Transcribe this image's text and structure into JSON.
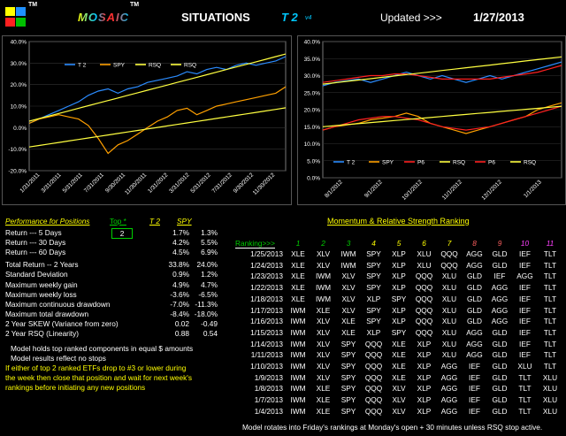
{
  "header": {
    "mosaic": "MOSAIC",
    "tm": "TM",
    "situations": "SITUATIONS",
    "t2": "T 2",
    "version": "v4",
    "updated_label": "Updated >>>",
    "updated_date": "1/27/2013",
    "letter_colors": [
      "#ffff00",
      "#00c8ff",
      "#ff3030",
      "#ff3030",
      "#ffff00",
      "#00c8ff"
    ]
  },
  "chart_data": [
    {
      "type": "line",
      "ylim": [
        -20,
        40
      ],
      "yticks": [
        "40.0%",
        "30.0%",
        "20.0%",
        "10.0%",
        "0.0%",
        "-10.0%",
        "-20.0%"
      ],
      "xticks": [
        "1/31/2011",
        "3/31/2011",
        "5/31/2011",
        "7/31/2011",
        "9/30/2011",
        "11/30/2011",
        "1/31/2012",
        "3/31/2012",
        "5/31/2012",
        "7/31/2012",
        "9/30/2012",
        "11/30/2012"
      ],
      "legend": [
        "T 2",
        "SPY",
        "RSQ",
        "RSQ"
      ],
      "series": [
        {
          "name": "T 2",
          "color": "#2b8cff",
          "values": [
            2,
            4,
            6,
            8,
            10,
            12,
            15,
            17,
            18,
            16,
            18,
            19,
            21,
            22,
            23,
            24,
            26,
            25,
            27,
            28,
            27,
            29,
            30,
            29,
            30,
            31,
            33
          ]
        },
        {
          "name": "SPY",
          "color": "#ffa000",
          "values": [
            2,
            4,
            5,
            6,
            5,
            4,
            1,
            -5,
            -12,
            -8,
            -6,
            -3,
            0,
            3,
            5,
            8,
            9,
            6,
            8,
            10,
            11,
            12,
            13,
            14,
            15,
            16,
            19
          ]
        },
        {
          "name": "RSQ",
          "color": "#ffff40",
          "values": [
            3,
            4.2,
            5.4,
            6.6,
            7.8,
            9,
            10.2,
            11.4,
            12.6,
            13.8,
            15,
            16.2,
            17.4,
            18.6,
            19.8,
            21,
            22.2,
            23.4,
            24.6,
            25.8,
            27,
            28.2,
            29.4,
            30.6,
            31.8,
            33,
            34.2
          ]
        },
        {
          "name": "RSQ",
          "color": "#ffff40",
          "values": [
            -9,
            -8.3,
            -7.6,
            -6.9,
            -6.2,
            -5.5,
            -4.8,
            -4.1,
            -3.4,
            -2.7,
            -2,
            -1.3,
            -0.6,
            0.1,
            0.8,
            1.5,
            2.2,
            2.9,
            3.6,
            4.3,
            5,
            5.7,
            6.4,
            7.1,
            7.8,
            8.5,
            9.2
          ]
        }
      ]
    },
    {
      "type": "line",
      "ylim": [
        0,
        40
      ],
      "yticks": [
        "40.0%",
        "35.0%",
        "30.0%",
        "25.0%",
        "20.0%",
        "15.0%",
        "10.0%",
        "5.0%",
        "0.0%"
      ],
      "xticks": [
        "8/1/2012",
        "9/1/2012",
        "10/1/2012",
        "11/1/2012",
        "12/1/2012",
        "1/1/2013"
      ],
      "legend": [
        "T 2",
        "SPY",
        "P6",
        "RSQ",
        "P6",
        "RSQ"
      ],
      "series": [
        {
          "name": "T 2",
          "color": "#2b8cff",
          "values": [
            27,
            28,
            28.5,
            29,
            28,
            29,
            30,
            31,
            30,
            29,
            30,
            29,
            28,
            29,
            30,
            29,
            30,
            31,
            32,
            33,
            34
          ]
        },
        {
          "name": "SPY",
          "color": "#ffa000",
          "values": [
            14,
            15,
            15.5,
            16,
            17,
            17.5,
            18,
            19,
            18,
            16,
            15,
            14,
            13,
            14,
            15,
            16,
            17,
            18,
            20,
            21,
            22
          ]
        },
        {
          "name": "P6",
          "color": "#ff2020",
          "values": [
            28,
            28.5,
            29,
            29.5,
            30,
            30,
            30.5,
            30.5,
            30,
            29.5,
            29,
            29,
            29,
            29,
            29,
            29.5,
            30,
            30.5,
            31,
            32,
            33
          ]
        },
        {
          "name": "RSQ",
          "color": "#ffff40",
          "values": [
            27.5,
            27.9,
            28.3,
            28.7,
            29.1,
            29.5,
            29.9,
            30.3,
            30.7,
            31.1,
            31.5,
            31.9,
            32.3,
            32.7,
            33.1,
            33.5,
            33.9,
            34.3,
            34.7,
            35.1,
            35.5
          ]
        },
        {
          "name": "P6",
          "color": "#ff2020",
          "values": [
            14,
            15,
            16,
            17,
            17.5,
            18,
            18,
            17.5,
            17,
            16,
            15,
            14.5,
            14,
            14.5,
            15,
            16,
            17,
            18,
            19,
            20,
            21
          ]
        },
        {
          "name": "RSQ",
          "color": "#ffff40",
          "values": [
            15,
            15.3,
            15.6,
            15.9,
            16.2,
            16.5,
            16.8,
            17.1,
            17.4,
            17.7,
            18,
            18.3,
            18.6,
            18.9,
            19.2,
            19.5,
            19.8,
            20.1,
            20.4,
            20.7,
            21
          ]
        }
      ]
    }
  ],
  "performance": {
    "title": "Performance for Positions",
    "top_label": "Top *",
    "top_value": "2",
    "col1": "T 2",
    "col2": "SPY",
    "rows": [
      {
        "label": "Return --- 5 Days",
        "v1": "1.7%",
        "v2": "1.3%"
      },
      {
        "label": "Return --- 30 Days",
        "v1": "4.2%",
        "v2": "5.5%"
      },
      {
        "label": "Return --- 60 Days",
        "v1": "4.5%",
        "v2": "6.9%"
      },
      {
        "label": "Total Return -- 2 Years",
        "v1": "33.8%",
        "v2": "24.0%"
      },
      {
        "label": "Standard Deviation",
        "v1": "0.9%",
        "v2": "1.2%"
      },
      {
        "label": "Maximum weekly gain",
        "v1": "4.9%",
        "v2": "4.7%"
      },
      {
        "label": "Maximum weekly loss",
        "v1": "-3.6%",
        "v2": "-6.5%"
      },
      {
        "label": "Maximum continuous drawdown",
        "v1": "-7.0%",
        "v2": "-11.3%"
      },
      {
        "label": "Maximum total drawdown",
        "v1": "-8.4%",
        "v2": "-18.0%"
      },
      {
        "label": "2 Year SKEW  (Variance from zero)",
        "v1": "0.02",
        "v2": "-0.49"
      },
      {
        "label": "2 Year RSQ  (Linearity)",
        "v1": "0.88",
        "v2": "0.54"
      }
    ],
    "notes": [
      "Model holds top ranked  components in equal  $ amounts",
      "Model results reflect no stops"
    ],
    "warning": [
      "If either of top 2 ranked ETFs drop to #3 or lower during",
      "the week then close that position and wait for next week's",
      "rankings before initiating any new positions"
    ]
  },
  "ranking": {
    "title": "Momentum & Relative Strength Ranking",
    "header_label": "Ranking>>>",
    "columns": [
      "1",
      "2",
      "3",
      "4",
      "5",
      "6",
      "7",
      "8",
      "9",
      "10",
      "11"
    ],
    "column_colors": [
      "#00d000",
      "#00d000",
      "#00d000",
      "#ffff00",
      "#ffff00",
      "#ffff00",
      "#ffff00",
      "#ff6060",
      "#ff6060",
      "#ff40ff",
      "#ff40ff"
    ],
    "rows": [
      {
        "date": "1/25/2013",
        "items": [
          "XLE",
          "XLV",
          "IWM",
          "SPY",
          "XLP",
          "XLU",
          "QQQ",
          "AGG",
          "GLD",
          "IEF",
          "TLT"
        ]
      },
      {
        "date": "1/24/2013",
        "items": [
          "XLE",
          "XLV",
          "IWM",
          "SPY",
          "XLP",
          "XLU",
          "QQQ",
          "AGG",
          "GLD",
          "IEF",
          "TLT"
        ]
      },
      {
        "date": "1/23/2013",
        "items": [
          "XLE",
          "IWM",
          "XLV",
          "SPY",
          "XLP",
          "QQQ",
          "XLU",
          "GLD",
          "IEF",
          "AGG",
          "TLT"
        ]
      },
      {
        "date": "1/22/2013",
        "items": [
          "XLE",
          "IWM",
          "XLV",
          "SPY",
          "XLP",
          "QQQ",
          "XLU",
          "GLD",
          "AGG",
          "IEF",
          "TLT"
        ]
      },
      {
        "date": "1/18/2013",
        "items": [
          "XLE",
          "IWM",
          "XLV",
          "XLP",
          "SPY",
          "QQQ",
          "XLU",
          "GLD",
          "AGG",
          "IEF",
          "TLT"
        ]
      },
      {
        "date": "1/17/2013",
        "items": [
          "IWM",
          "XLE",
          "XLV",
          "SPY",
          "XLP",
          "QQQ",
          "XLU",
          "GLD",
          "AGG",
          "IEF",
          "TLT"
        ]
      },
      {
        "date": "1/16/2013",
        "items": [
          "IWM",
          "XLV",
          "XLE",
          "SPY",
          "XLP",
          "QQQ",
          "XLU",
          "GLD",
          "AGG",
          "IEF",
          "TLT"
        ]
      },
      {
        "date": "1/15/2013",
        "items": [
          "IWM",
          "XLV",
          "XLE",
          "XLP",
          "SPY",
          "QQQ",
          "XLU",
          "AGG",
          "GLD",
          "IEF",
          "TLT"
        ]
      },
      {
        "date": "1/14/2013",
        "items": [
          "IWM",
          "XLV",
          "SPY",
          "QQQ",
          "XLE",
          "XLP",
          "XLU",
          "AGG",
          "GLD",
          "IEF",
          "TLT"
        ]
      },
      {
        "date": "1/11/2013",
        "items": [
          "IWM",
          "XLV",
          "SPY",
          "QQQ",
          "XLE",
          "XLP",
          "XLU",
          "AGG",
          "GLD",
          "IEF",
          "TLT"
        ]
      },
      {
        "date": "1/10/2013",
        "items": [
          "IWM",
          "XLV",
          "SPY",
          "QQQ",
          "XLE",
          "XLP",
          "AGG",
          "IEF",
          "GLD",
          "XLU",
          "TLT"
        ]
      },
      {
        "date": "1/9/2013",
        "items": [
          "IWM",
          "XLV",
          "SPY",
          "QQQ",
          "XLE",
          "XLP",
          "AGG",
          "IEF",
          "GLD",
          "TLT",
          "XLU"
        ]
      },
      {
        "date": "1/8/2013",
        "items": [
          "IWM",
          "XLE",
          "SPY",
          "QQQ",
          "XLV",
          "XLP",
          "AGG",
          "IEF",
          "GLD",
          "TLT",
          "XLU"
        ]
      },
      {
        "date": "1/7/2013",
        "items": [
          "IWM",
          "XLE",
          "SPY",
          "QQQ",
          "XLV",
          "XLP",
          "AGG",
          "IEF",
          "GLD",
          "TLT",
          "XLU"
        ]
      },
      {
        "date": "1/4/2013",
        "items": [
          "IWM",
          "XLE",
          "SPY",
          "QQQ",
          "XLV",
          "XLP",
          "AGG",
          "IEF",
          "GLD",
          "TLT",
          "XLU"
        ]
      }
    ],
    "footer": "Model rotates into Friday's rankings at Monday's open + 30 minutes unless RSQ stop active."
  }
}
